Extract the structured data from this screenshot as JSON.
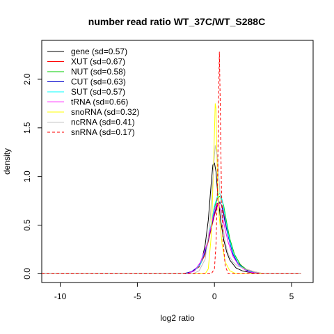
{
  "chart_data": {
    "type": "line",
    "title": "number read ratio WT_37C/WT_S288C",
    "xlabel": "log2 ratio",
    "ylabel": "density",
    "xlim": [
      -11.2,
      6.4
    ],
    "ylim": [
      -0.09,
      2.4
    ],
    "xticks": [
      -10,
      -5,
      0,
      5
    ],
    "xtick_labels": [
      "-10",
      "-5",
      "0",
      "5"
    ],
    "yticks": [
      0.0,
      0.5,
      1.0,
      1.5,
      2.0
    ],
    "ytick_labels": [
      "0.0",
      "0.5",
      "1.0",
      "1.5",
      "2.0"
    ],
    "grid": false,
    "legend_position": "top-left",
    "series": [
      {
        "name": "gene (sd=0.57)",
        "color": "#000000",
        "dash": "solid",
        "x": [
          -11.2,
          -2.0,
          -1.5,
          -1.0,
          -0.8,
          -0.6,
          -0.4,
          -0.2,
          -0.1,
          0.0,
          0.1,
          0.2,
          0.4,
          0.6,
          0.8,
          1.0,
          1.4,
          1.8,
          2.4,
          3.0,
          5.6
        ],
        "y": [
          0.0,
          0.0,
          0.02,
          0.07,
          0.15,
          0.3,
          0.55,
          0.95,
          1.12,
          1.14,
          1.05,
          0.85,
          0.55,
          0.35,
          0.22,
          0.14,
          0.06,
          0.03,
          0.01,
          0.0,
          0.0
        ]
      },
      {
        "name": "XUT (sd=0.67)",
        "color": "#ff0000",
        "dash": "solid",
        "x": [
          -11.2,
          -2.0,
          -1.5,
          -1.0,
          -0.6,
          -0.3,
          0.0,
          0.2,
          0.35,
          0.5,
          0.7,
          0.9,
          1.2,
          1.5,
          2.0,
          2.6,
          3.2,
          5.6
        ],
        "y": [
          0.0,
          0.0,
          0.02,
          0.07,
          0.2,
          0.4,
          0.6,
          0.7,
          0.73,
          0.7,
          0.55,
          0.4,
          0.22,
          0.12,
          0.05,
          0.02,
          0.0,
          0.0
        ]
      },
      {
        "name": "NUT (sd=0.58)",
        "color": "#00cc00",
        "dash": "solid",
        "x": [
          -11.2,
          -1.8,
          -1.3,
          -0.9,
          -0.5,
          -0.2,
          0.0,
          0.2,
          0.4,
          0.6,
          0.8,
          1.0,
          1.3,
          1.7,
          2.2,
          2.8,
          5.6
        ],
        "y": [
          0.0,
          0.0,
          0.03,
          0.1,
          0.28,
          0.5,
          0.68,
          0.78,
          0.8,
          0.7,
          0.52,
          0.36,
          0.2,
          0.09,
          0.03,
          0.0,
          0.0
        ]
      },
      {
        "name": "CUT (sd=0.63)",
        "color": "#0000cc",
        "dash": "solid",
        "x": [
          -11.2,
          -2.0,
          -1.5,
          -1.0,
          -0.6,
          -0.3,
          0.0,
          0.2,
          0.35,
          0.5,
          0.7,
          0.9,
          1.2,
          1.5,
          2.0,
          2.6,
          3.2,
          5.6
        ],
        "y": [
          0.0,
          0.0,
          0.02,
          0.08,
          0.22,
          0.42,
          0.62,
          0.72,
          0.74,
          0.68,
          0.52,
          0.38,
          0.2,
          0.11,
          0.04,
          0.01,
          0.0,
          0.0
        ]
      },
      {
        "name": "SUT (sd=0.57)",
        "color": "#00ffff",
        "dash": "solid",
        "x": [
          -11.2,
          -1.8,
          -1.3,
          -0.9,
          -0.5,
          -0.2,
          0.0,
          0.2,
          0.35,
          0.5,
          0.7,
          0.9,
          1.2,
          1.6,
          2.1,
          2.8,
          5.6
        ],
        "y": [
          0.0,
          0.0,
          0.03,
          0.1,
          0.3,
          0.52,
          0.7,
          0.8,
          0.83,
          0.76,
          0.58,
          0.4,
          0.22,
          0.09,
          0.03,
          0.0,
          0.0
        ]
      },
      {
        "name": "tRNA (sd=0.66)",
        "color": "#ff00ff",
        "dash": "solid",
        "x": [
          -11.2,
          -1.8,
          -1.3,
          -0.9,
          -0.5,
          -0.2,
          0.0,
          0.15,
          0.3,
          0.5,
          0.7,
          0.9,
          1.2,
          1.6,
          2.2,
          2.9,
          5.6
        ],
        "y": [
          0.0,
          0.0,
          0.03,
          0.12,
          0.3,
          0.5,
          0.65,
          0.72,
          0.7,
          0.6,
          0.45,
          0.32,
          0.18,
          0.08,
          0.02,
          0.0,
          0.0
        ]
      },
      {
        "name": "snoRNA (sd=0.32)",
        "color": "#ffff00",
        "dash": "solid",
        "x": [
          -11.2,
          -0.6,
          -0.4,
          -0.2,
          -0.1,
          0.0,
          0.05,
          0.1,
          0.15,
          0.2,
          0.3,
          0.4,
          0.5,
          0.7,
          1.0,
          1.4,
          5.6
        ],
        "y": [
          0.0,
          0.0,
          0.05,
          0.4,
          0.9,
          1.45,
          1.75,
          1.7,
          1.3,
          0.95,
          0.6,
          0.45,
          0.3,
          0.12,
          0.03,
          0.0,
          0.0
        ]
      },
      {
        "name": "ncRNA (sd=0.41)",
        "color": "#bebebe",
        "dash": "solid",
        "x": [
          -11.2,
          -1.4,
          -1.0,
          -0.6,
          -0.3,
          -0.1,
          0.05,
          0.2,
          0.35,
          0.5,
          0.7,
          0.9,
          1.2,
          1.5,
          2.0,
          2.6,
          3.2,
          5.6
        ],
        "y": [
          0.0,
          0.0,
          0.03,
          0.15,
          0.5,
          1.0,
          1.32,
          1.2,
          0.85,
          0.55,
          0.32,
          0.2,
          0.12,
          0.08,
          0.05,
          0.02,
          0.0,
          0.0
        ]
      },
      {
        "name": "snRNA (sd=0.17)",
        "color": "#ff0000",
        "dash": "dashed",
        "x": [
          -11.2,
          -0.2,
          0.0,
          0.1,
          0.2,
          0.27,
          0.32,
          0.37,
          0.45,
          0.55,
          0.7,
          0.9,
          5.6
        ],
        "y": [
          0.0,
          0.0,
          0.05,
          0.3,
          0.9,
          1.8,
          2.28,
          1.8,
          0.9,
          0.35,
          0.08,
          0.0,
          0.0
        ]
      }
    ]
  }
}
